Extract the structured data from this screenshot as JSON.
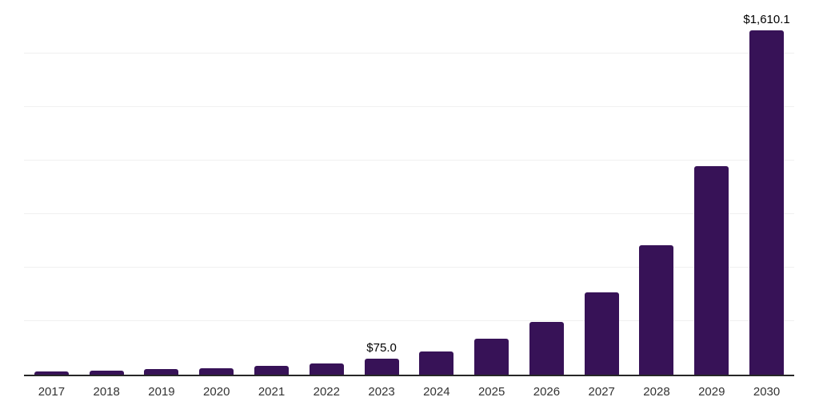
{
  "chart_data": {
    "type": "bar",
    "title": "",
    "xlabel": "",
    "ylabel": "",
    "categories": [
      "2017",
      "2018",
      "2019",
      "2020",
      "2021",
      "2022",
      "2023",
      "2024",
      "2025",
      "2026",
      "2027",
      "2028",
      "2029",
      "2030"
    ],
    "values": [
      15,
      19,
      26,
      31,
      40,
      53,
      75.0,
      108,
      167,
      245,
      384,
      604,
      973,
      1610.1
    ],
    "value_labels": [
      {
        "category": "2023",
        "text": "$75.0"
      },
      {
        "category": "2030",
        "text": "$1,610.1"
      }
    ],
    "ylim": [
      0,
      1750
    ],
    "gridline_interval": 250,
    "grid": true,
    "legend": false,
    "colors": {
      "bar": "#371257",
      "axis_line": "#262626",
      "gridline": "#f0f0f0",
      "value_label_text": "#000000",
      "tick_label_text": "#333333",
      "background": "#ffffff"
    }
  }
}
